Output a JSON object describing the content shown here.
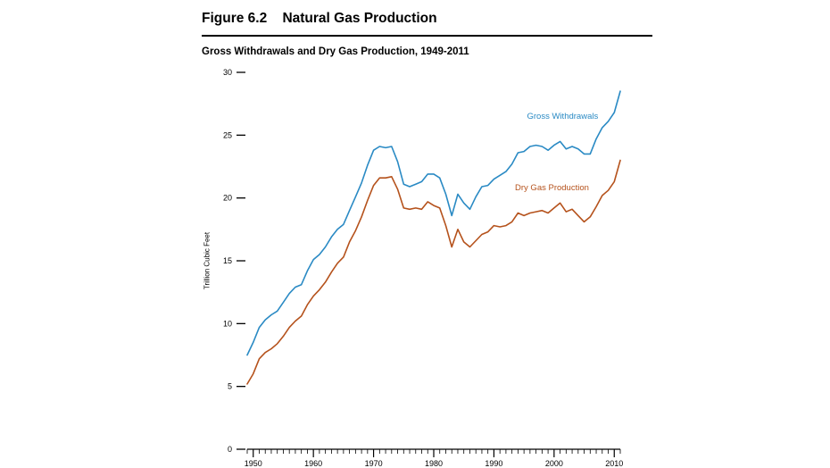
{
  "figure": {
    "number": "Figure 6.2",
    "title": "Natural Gas Production"
  },
  "chart_data": {
    "type": "line",
    "title": "Gross Withdrawals and Dry Gas Production, 1949-2011",
    "xlabel": "",
    "ylabel": "Trillion Cubic Feet",
    "xlim": [
      1949,
      2011
    ],
    "ylim": [
      0,
      30
    ],
    "yticks": [
      0,
      5,
      10,
      15,
      20,
      25,
      30
    ],
    "xticks": [
      1950,
      1960,
      1970,
      1980,
      1990,
      2000,
      2010
    ],
    "grid": false,
    "legend": "inline",
    "x": [
      1949,
      1950,
      1951,
      1952,
      1953,
      1954,
      1955,
      1956,
      1957,
      1958,
      1959,
      1960,
      1961,
      1962,
      1963,
      1964,
      1965,
      1966,
      1967,
      1968,
      1969,
      1970,
      1971,
      1972,
      1973,
      1974,
      1975,
      1976,
      1977,
      1978,
      1979,
      1980,
      1981,
      1982,
      1983,
      1984,
      1985,
      1986,
      1987,
      1988,
      1989,
      1990,
      1991,
      1992,
      1993,
      1994,
      1995,
      1996,
      1997,
      1998,
      1999,
      2000,
      2001,
      2002,
      2003,
      2004,
      2005,
      2006,
      2007,
      2008,
      2009,
      2010,
      2011
    ],
    "series": [
      {
        "name": "Gross Withdrawals",
        "color": "#2a8ac4",
        "label_year": 1995.5,
        "label_value": 26.3,
        "values": [
          7.5,
          8.5,
          9.7,
          10.3,
          10.7,
          11.0,
          11.7,
          12.4,
          12.9,
          13.1,
          14.2,
          15.1,
          15.5,
          16.1,
          16.9,
          17.5,
          17.9,
          19.0,
          20.1,
          21.2,
          22.6,
          23.8,
          24.1,
          24.0,
          24.1,
          22.9,
          21.1,
          20.9,
          21.1,
          21.3,
          21.9,
          21.9,
          21.6,
          20.3,
          18.6,
          20.3,
          19.6,
          19.1,
          20.1,
          20.9,
          21.0,
          21.5,
          21.8,
          22.1,
          22.7,
          23.6,
          23.7,
          24.1,
          24.2,
          24.1,
          23.8,
          24.2,
          24.5,
          23.9,
          24.1,
          23.9,
          23.5,
          23.5,
          24.7,
          25.6,
          26.1,
          26.8,
          28.5
        ]
      },
      {
        "name": "Dry Gas Production",
        "color": "#b5521c",
        "label_year": 1993.5,
        "label_value": 20.6,
        "values": [
          5.2,
          6.0,
          7.2,
          7.7,
          8.0,
          8.4,
          9.0,
          9.7,
          10.2,
          10.6,
          11.5,
          12.2,
          12.7,
          13.3,
          14.1,
          14.8,
          15.3,
          16.5,
          17.4,
          18.5,
          19.8,
          21.0,
          21.6,
          21.6,
          21.7,
          20.7,
          19.2,
          19.1,
          19.2,
          19.1,
          19.7,
          19.4,
          19.2,
          17.8,
          16.1,
          17.5,
          16.5,
          16.1,
          16.6,
          17.1,
          17.3,
          17.8,
          17.7,
          17.8,
          18.1,
          18.8,
          18.6,
          18.8,
          18.9,
          19.0,
          18.8,
          19.2,
          19.6,
          18.9,
          19.1,
          18.6,
          18.1,
          18.5,
          19.3,
          20.2,
          20.6,
          21.3,
          23.0
        ]
      }
    ]
  }
}
